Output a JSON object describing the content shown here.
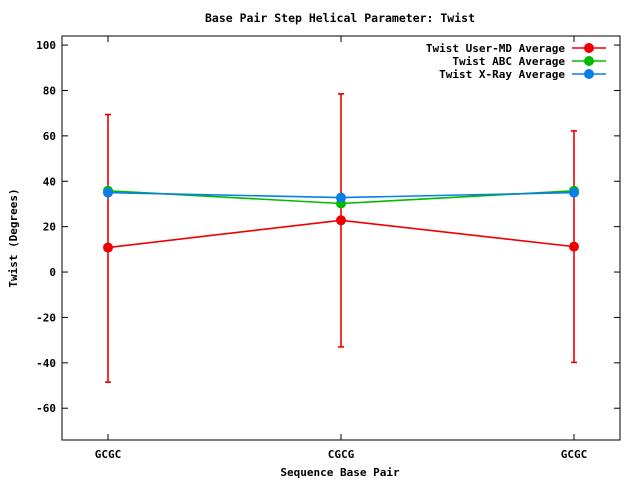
{
  "chart_data": {
    "type": "line",
    "title": "Base Pair Step Helical Parameter: Twist",
    "xlabel": "Sequence Base Pair",
    "ylabel": "Twist (Degrees)",
    "categories": [
      "GCGC",
      "CGCG",
      "GCGC"
    ],
    "ylim": [
      -74,
      104
    ],
    "yticks": [
      -60,
      -40,
      -20,
      0,
      20,
      40,
      60,
      80,
      100
    ],
    "legend_position": "top-right",
    "grid": false,
    "series": [
      {
        "name": "Twist User-MD Average",
        "color": "#ee0000",
        "values": [
          10.8,
          22.8,
          11.2
        ],
        "error_low": [
          -48.5,
          -33.0,
          -39.8
        ],
        "error_high": [
          69.4,
          78.5,
          62.2
        ]
      },
      {
        "name": "Twist ABC Average",
        "color": "#00bb00",
        "values": [
          35.8,
          30.2,
          35.8
        ]
      },
      {
        "name": "Twist X-Ray Average",
        "color": "#0a7ee8",
        "values": [
          35.0,
          32.8,
          35.0
        ]
      }
    ]
  }
}
